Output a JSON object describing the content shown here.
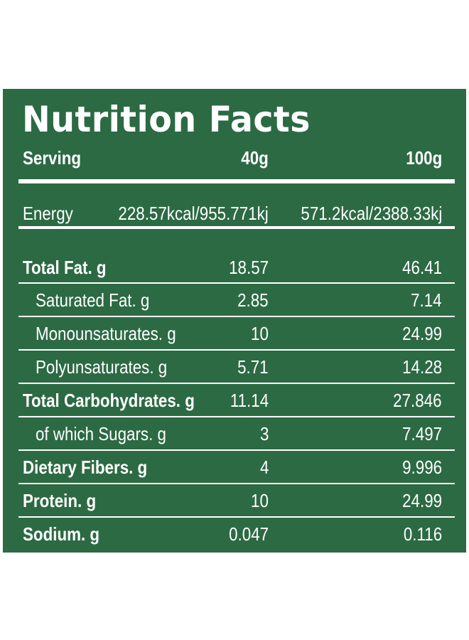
{
  "title": "Nutrition Facts",
  "header": {
    "label": "Serving",
    "col1": "40g",
    "col2": "100g"
  },
  "energy": {
    "label": "Energy",
    "col1": "228.57kcal/955.771kj",
    "col2": "571.2kcal/2388.33kj"
  },
  "rows": [
    {
      "label": "Total Fat. g",
      "col1": "18.57",
      "col2": "46.41"
    },
    {
      "label": "Saturated Fat. g",
      "col1": "2.85",
      "col2": "7.14"
    },
    {
      "label": "Monounsaturates. g",
      "col1": "10",
      "col2": "24.99"
    },
    {
      "label": "Polyunsaturates. g",
      "col1": "5.71",
      "col2": "14.28"
    },
    {
      "label": "Total Carbohydrates. g",
      "col1": "11.14",
      "col2": "27.846"
    },
    {
      "label": "of which Sugars. g",
      "col1": "3",
      "col2": "7.497"
    },
    {
      "label": "Dietary Fibers. g",
      "col1": "4",
      "col2": "9.996"
    },
    {
      "label": "Protein. g",
      "col1": "10",
      "col2": "24.99"
    },
    {
      "label": "Sodium. g",
      "col1": "0.047",
      "col2": "0.116"
    }
  ],
  "colors": {
    "background": "#2c6a43",
    "text": "#ffffff"
  }
}
